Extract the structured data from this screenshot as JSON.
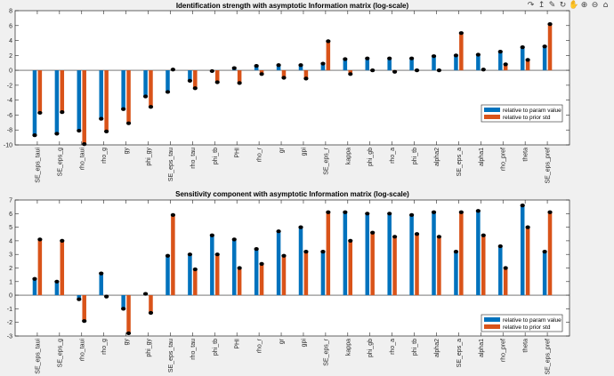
{
  "toolbar": {
    "icons": [
      "text-icon",
      "export-icon",
      "brush-icon",
      "rotate-icon",
      "pan-icon",
      "zoom-in-icon",
      "zoom-out-icon",
      "home-icon"
    ],
    "glyphs": [
      "↷",
      "↥",
      "✎",
      "↻",
      "✋",
      "⊕",
      "⊖",
      "⌂"
    ]
  },
  "chart_data": [
    {
      "type": "bar",
      "title": "Identification strength with asymptotic Information matrix (log-scale)",
      "categories": [
        "SE_eps_taui",
        "SE_eps_g",
        "rho_taui",
        "rho_g",
        "gy",
        "phi_gy",
        "SE_eps_tau",
        "rho_tau",
        "phi_tb",
        "PHI",
        "rho_r",
        "gr",
        "gpi",
        "SE_eps_r",
        "kappa",
        "phi_gb",
        "rho_a",
        "phi_tb",
        "alpha2",
        "SE_eps_a",
        "alpha1",
        "rho_pref",
        "theta",
        "SE_eps_pref"
      ],
      "series": [
        {
          "name": "relative to param value",
          "color": "#0072BD",
          "values": [
            -8.7,
            -8.5,
            -8.1,
            -6.5,
            -5.2,
            -3.5,
            -2.9,
            -1.4,
            -0.1,
            0.3,
            0.6,
            0.7,
            0.7,
            0.9,
            1.5,
            1.6,
            1.6,
            1.6,
            1.9,
            2.0,
            2.1,
            2.5,
            3.1,
            3.2
          ]
        },
        {
          "name": "relative to prior std",
          "color": "#D95319",
          "values": [
            -5.7,
            -5.6,
            -9.9,
            -8.2,
            -7.1,
            -4.9,
            0.1,
            -2.4,
            -1.6,
            -1.7,
            -0.5,
            -1.0,
            -1.1,
            3.9,
            -0.5,
            0.0,
            -0.2,
            0.0,
            0.0,
            5.0,
            0.1,
            0.8,
            1.4,
            6.2
          ]
        }
      ],
      "ylim": [
        -10,
        8
      ],
      "yticks": [
        -10,
        -8,
        -6,
        -4,
        -2,
        0,
        2,
        4,
        6,
        8
      ],
      "legend": "lower-right"
    },
    {
      "type": "bar",
      "title": "Sensitivity component with asymptotic Information matrix (log-scale)",
      "categories": [
        "SE_eps_taui",
        "SE_eps_g",
        "rho_taui",
        "rho_g",
        "gy",
        "phi_gy",
        "SE_eps_tau",
        "rho_tau",
        "phi_tb",
        "PHI",
        "rho_r",
        "gr",
        "gpi",
        "SE_eps_r",
        "kappa",
        "phi_gb",
        "rho_a",
        "phi_tb",
        "alpha2",
        "SE_eps_a",
        "alpha1",
        "rho_pref",
        "theta",
        "SE_eps_pref"
      ],
      "series": [
        {
          "name": "relative to param value",
          "color": "#0072BD",
          "values": [
            1.2,
            1.0,
            -0.3,
            1.6,
            -1.0,
            0.1,
            2.9,
            3.0,
            4.4,
            4.1,
            3.4,
            4.7,
            5.0,
            3.2,
            6.1,
            6.0,
            6.0,
            5.9,
            6.1,
            3.2,
            6.2,
            3.6,
            6.6,
            3.2
          ]
        },
        {
          "name": "relative to prior std",
          "color": "#D95319",
          "values": [
            4.1,
            4.0,
            -1.9,
            -0.1,
            -2.8,
            -1.3,
            5.9,
            1.9,
            3.0,
            2.0,
            2.3,
            2.9,
            3.2,
            6.1,
            4.0,
            4.6,
            4.3,
            4.5,
            4.3,
            6.1,
            4.4,
            2.0,
            5.0,
            6.1
          ]
        }
      ],
      "ylim": [
        -3,
        7
      ],
      "yticks": [
        -3,
        -2,
        -1,
        0,
        1,
        2,
        3,
        4,
        5,
        6,
        7
      ],
      "legend": "lower-right"
    }
  ]
}
